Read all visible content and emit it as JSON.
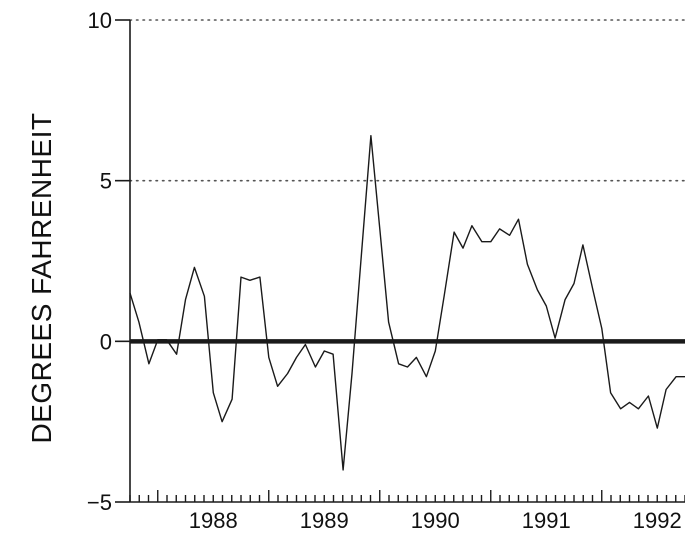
{
  "chart_data": {
    "type": "line",
    "title": "",
    "xlabel": "",
    "ylabel": "DEGREES FAHRENHEIT",
    "ylim": [
      -5,
      10
    ],
    "xlim": [
      1987.75,
      1992.75
    ],
    "y_ticks": [
      {
        "value": 10,
        "label": "10"
      },
      {
        "value": 5,
        "label": "5"
      },
      {
        "value": 0,
        "label": "0"
      },
      {
        "value": -5,
        "label": "−5"
      }
    ],
    "x_ticks": [
      {
        "value": 1988,
        "label": "1988"
      },
      {
        "value": 1989,
        "label": "1989"
      },
      {
        "value": 1990,
        "label": "1990"
      },
      {
        "value": 1991,
        "label": "1991"
      },
      {
        "value": 1992,
        "label": "1992"
      }
    ],
    "dotted_gridlines": [
      5,
      10
    ],
    "reference_line": 0,
    "minor_ticks": "monthly",
    "legend": "none",
    "colors": {
      "line": "#1a1a1a",
      "axis": "#1a1a1a",
      "grid": "#555555",
      "background": "#ffffff"
    },
    "series": [
      {
        "x": [
          1987.75,
          1987.83,
          1987.92,
          1988.0,
          1988.08,
          1988.17,
          1988.25,
          1988.33,
          1988.42,
          1988.5,
          1988.58,
          1988.67,
          1988.75,
          1988.83,
          1988.92,
          1989.0,
          1989.08,
          1989.17,
          1989.25,
          1989.33,
          1989.42,
          1989.5,
          1989.58,
          1989.67,
          1989.75,
          1989.83,
          1989.92,
          1990.0,
          1990.08,
          1990.17,
          1990.25,
          1990.33,
          1990.42,
          1990.5,
          1990.58,
          1990.67,
          1990.75,
          1990.83,
          1990.92,
          1991.0,
          1991.08,
          1991.17,
          1991.25,
          1991.33,
          1991.42,
          1991.5,
          1991.58,
          1991.67,
          1991.75,
          1991.83,
          1991.92,
          1992.0,
          1992.08,
          1992.17,
          1992.25,
          1992.33,
          1992.42,
          1992.5,
          1992.58,
          1992.67,
          1992.75
        ],
        "values": [
          1.5,
          0.6,
          -0.7,
          0.05,
          0.05,
          -0.4,
          1.3,
          2.3,
          1.4,
          -1.6,
          -2.5,
          -1.8,
          2.0,
          1.9,
          2.0,
          -0.5,
          -1.4,
          -1.0,
          -0.5,
          -0.1,
          -0.8,
          -0.3,
          -0.4,
          -4.0,
          -1.0,
          2.5,
          6.4,
          3.5,
          0.6,
          -0.7,
          -0.8,
          -0.5,
          -1.1,
          -0.3,
          1.4,
          3.4,
          2.9,
          3.6,
          3.1,
          3.1,
          3.5,
          3.3,
          3.8,
          2.4,
          1.6,
          1.1,
          0.1,
          1.3,
          1.8,
          3.0,
          1.6,
          0.4,
          -1.6,
          -2.1,
          -1.9,
          -2.1,
          -1.7,
          -2.7,
          -1.5,
          -1.1,
          -1.1
        ]
      }
    ]
  }
}
